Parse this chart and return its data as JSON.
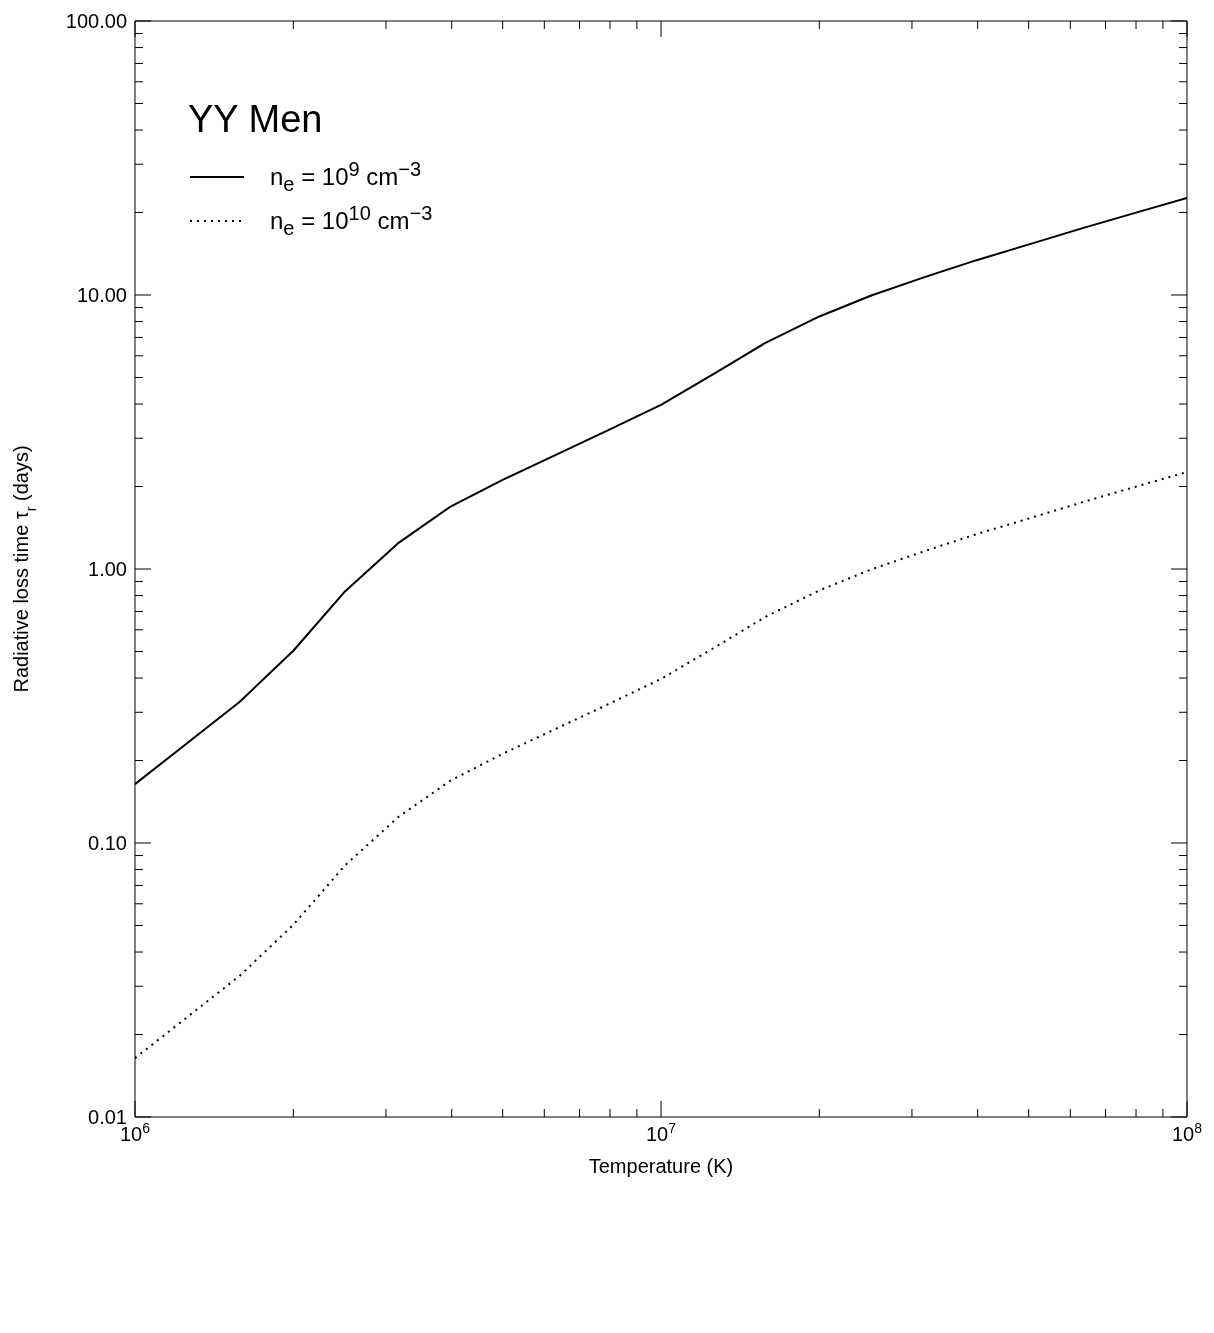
{
  "chart_data": {
    "type": "line",
    "xlabel": "Temperature (K)",
    "ylabel": "Radiative loss time τ$_{r}$ (days)",
    "legend_title": "YY Men",
    "legend": "top left",
    "log": "xy",
    "xlim": [
      1000000,
      100000000
    ],
    "xticks": [
      {
        "value": 1000000,
        "label": "10$^{6}$"
      },
      {
        "value": 2000000,
        "label": null
      },
      {
        "value": 3000000,
        "label": null
      },
      {
        "value": 4000000,
        "label": null
      },
      {
        "value": 5000000,
        "label": null
      },
      {
        "value": 6000000,
        "label": null
      },
      {
        "value": 7000000,
        "label": null
      },
      {
        "value": 8000000,
        "label": null
      },
      {
        "value": 9000000,
        "label": null
      },
      {
        "value": 10000000,
        "label": "10$^{7}$"
      },
      {
        "value": 20000000,
        "label": null
      },
      {
        "value": 30000000,
        "label": null
      },
      {
        "value": 40000000,
        "label": null
      },
      {
        "value": 50000000,
        "label": null
      },
      {
        "value": 60000000,
        "label": null
      },
      {
        "value": 70000000,
        "label": null
      },
      {
        "value": 80000000,
        "label": null
      },
      {
        "value": 90000000,
        "label": null
      },
      {
        "value": 100000000,
        "label": "10$^{8}$"
      }
    ],
    "ylim": [
      0.01,
      100
    ],
    "yticks": [
      {
        "value": 0.01,
        "label": "0.01"
      },
      {
        "value": 0.02,
        "label": null
      },
      {
        "value": 0.03,
        "label": null
      },
      {
        "value": 0.04,
        "label": null
      },
      {
        "value": 0.05,
        "label": null
      },
      {
        "value": 0.06,
        "label": null
      },
      {
        "value": 0.07,
        "label": null
      },
      {
        "value": 0.08,
        "label": null
      },
      {
        "value": 0.09,
        "label": null
      },
      {
        "value": 0.1,
        "label": "0.10"
      },
      {
        "value": 0.2,
        "label": null
      },
      {
        "value": 0.3,
        "label": null
      },
      {
        "value": 0.4,
        "label": null
      },
      {
        "value": 0.5,
        "label": null
      },
      {
        "value": 0.6,
        "label": null
      },
      {
        "value": 0.7,
        "label": null
      },
      {
        "value": 0.8,
        "label": null
      },
      {
        "value": 0.9,
        "label": null
      },
      {
        "value": 1,
        "label": "1.00"
      },
      {
        "value": 2,
        "label": null
      },
      {
        "value": 3,
        "label": null
      },
      {
        "value": 4,
        "label": null
      },
      {
        "value": 5,
        "label": null
      },
      {
        "value": 6,
        "label": null
      },
      {
        "value": 7,
        "label": null
      },
      {
        "value": 8,
        "label": null
      },
      {
        "value": 9,
        "label": null
      },
      {
        "value": 10,
        "label": "10.00"
      },
      {
        "value": 20,
        "label": null
      },
      {
        "value": 30,
        "label": null
      },
      {
        "value": 40,
        "label": null
      },
      {
        "value": 50,
        "label": null
      },
      {
        "value": 60,
        "label": null
      },
      {
        "value": 70,
        "label": null
      },
      {
        "value": 80,
        "label": null
      },
      {
        "value": 90,
        "label": null
      },
      {
        "value": 100,
        "label": "100.00"
      }
    ],
    "series": [
      {
        "name": "n$_{e}$ = 10$^{9}$ cm$^{−3}$",
        "color": "#000000",
        "line_style": "solid",
        "x": [
          1000000,
          1580000,
          2000000,
          2510000,
          3160000,
          3980000,
          5010000,
          6310000,
          7940000,
          10000000,
          12600000,
          15800000,
          20000000,
          25100000,
          31600000,
          39800000,
          50100000,
          63100000,
          79400000,
          100000000
        ],
        "values": [
          0.164,
          0.327,
          0.503,
          0.83,
          1.24,
          1.69,
          2.12,
          2.61,
          3.21,
          3.97,
          5.15,
          6.69,
          8.35,
          9.96,
          11.6,
          13.4,
          15.3,
          17.5,
          19.9,
          22.6
        ]
      },
      {
        "name": "n$_{e}$ = 10$^{10}$ cm$^{−3}$",
        "color": "#000000",
        "line_style": "dotted",
        "x": [
          1000000,
          1580000,
          2000000,
          2510000,
          3160000,
          3980000,
          5010000,
          6310000,
          7940000,
          10000000,
          12600000,
          15800000,
          20000000,
          25100000,
          31600000,
          39800000,
          50100000,
          63100000,
          79400000,
          100000000
        ],
        "values": [
          0.0164,
          0.0327,
          0.0503,
          0.083,
          0.124,
          0.169,
          0.212,
          0.261,
          0.321,
          0.397,
          0.515,
          0.669,
          0.835,
          0.996,
          1.16,
          1.34,
          1.53,
          1.75,
          1.99,
          2.26
        ]
      }
    ]
  }
}
